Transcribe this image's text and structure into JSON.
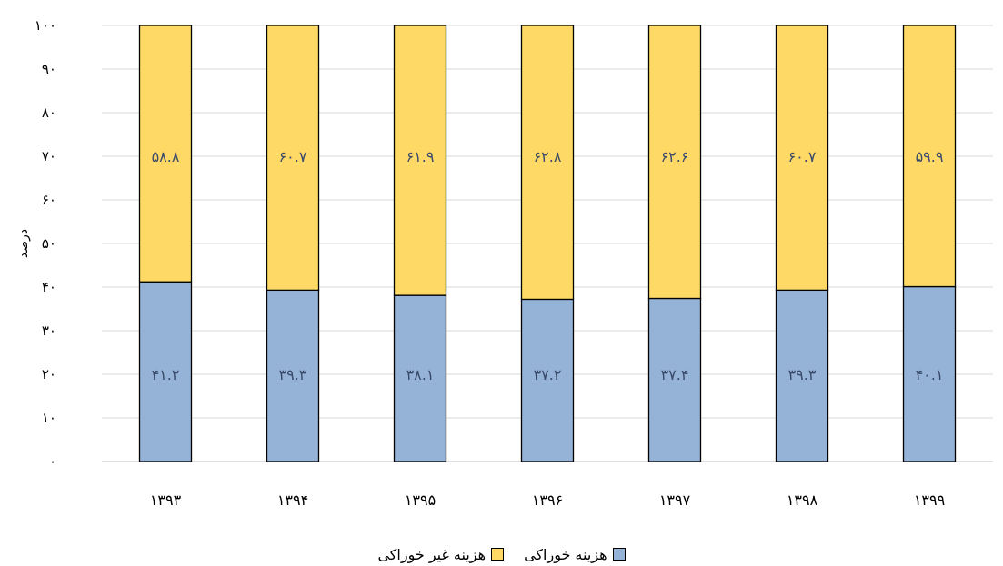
{
  "chart_data": {
    "type": "bar",
    "stacked": true,
    "categories": [
      "۱۳۹۳",
      "۱۳۹۴",
      "۱۳۹۵",
      "۱۳۹۶",
      "۱۳۹۷",
      "۱۳۹۸",
      "۱۳۹۹"
    ],
    "series": [
      {
        "name": "هزینه خوراکی",
        "color": "#95b3d7",
        "values": [
          41.2,
          39.3,
          38.1,
          37.2,
          37.4,
          39.3,
          40.1
        ],
        "labels": [
          "۴۱.۲",
          "۳۹.۳",
          "۳۸.۱",
          "۳۷.۲",
          "۳۷.۴",
          "۳۹.۳",
          "۴۰.۱"
        ]
      },
      {
        "name": "هزینه  غیر خوراکی",
        "color": "#ffd966",
        "values": [
          58.8,
          60.7,
          61.9,
          62.8,
          62.6,
          60.7,
          59.9
        ],
        "labels": [
          "۵۸.۸",
          "۶۰.۷",
          "۶۱.۹",
          "۶۲.۸",
          "۶۲.۶",
          "۶۰.۷",
          "۵۹.۹"
        ]
      }
    ],
    "ylabel": "درصد",
    "ylim": [
      0,
      100
    ],
    "yticks": [
      0,
      10,
      20,
      30,
      40,
      50,
      60,
      70,
      80,
      90,
      100
    ],
    "ytick_labels": [
      "۰",
      "۱۰",
      "۲۰",
      "۳۰",
      "۴۰",
      "۵۰",
      "۶۰",
      "۷۰",
      "۸۰",
      "۹۰",
      "۱۰۰"
    ],
    "grid": true,
    "legend_position": "bottom"
  },
  "legend": {
    "food_label": "هزینه خوراکی",
    "nonfood_label": "هزینه  غیر خوراکی",
    "food_color": "#95b3d7",
    "nonfood_color": "#ffd966"
  }
}
